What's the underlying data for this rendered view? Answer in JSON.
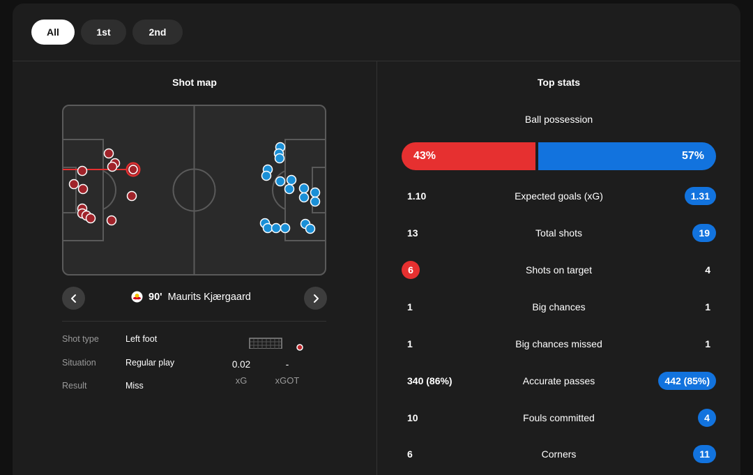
{
  "tabs": [
    {
      "label": "All",
      "active": true
    },
    {
      "label": "1st",
      "active": false
    },
    {
      "label": "2nd",
      "active": false
    }
  ],
  "shot_map": {
    "title": "Shot map",
    "home_color": "#e63030",
    "away_color": "#1a8fd6",
    "selected_shot": {
      "minute": "90'",
      "player": "Maurits Kjærgaard",
      "club_icon": "red-bull-crest-icon",
      "details": [
        {
          "label": "Shot type",
          "value": "Left foot"
        },
        {
          "label": "Situation",
          "value": "Regular play"
        },
        {
          "label": "Result",
          "value": "Miss"
        }
      ],
      "xg": "0.02",
      "xg_label": "xG",
      "xgot": "-",
      "xgot_label": "xGOT"
    }
  },
  "top_stats": {
    "title": "Top stats",
    "possession": {
      "label": "Ball possession",
      "home": "43%",
      "away": "57%",
      "home_value": 43,
      "away_value": 57
    },
    "rows": [
      {
        "label": "Expected goals (xG)",
        "home": "1.10",
        "away": "1.31",
        "highlight": "away"
      },
      {
        "label": "Total shots",
        "home": "13",
        "away": "19",
        "highlight": "away"
      },
      {
        "label": "Shots on target",
        "home": "6",
        "away": "4",
        "highlight": "home"
      },
      {
        "label": "Big chances",
        "home": "1",
        "away": "1",
        "highlight": "none"
      },
      {
        "label": "Big chances missed",
        "home": "1",
        "away": "1",
        "highlight": "none"
      },
      {
        "label": "Accurate passes",
        "home": "340 (86%)",
        "away": "442 (85%)",
        "highlight": "away"
      },
      {
        "label": "Fouls committed",
        "home": "10",
        "away": "4",
        "highlight": "away"
      },
      {
        "label": "Corners",
        "home": "6",
        "away": "11",
        "highlight": "away"
      }
    ]
  }
}
